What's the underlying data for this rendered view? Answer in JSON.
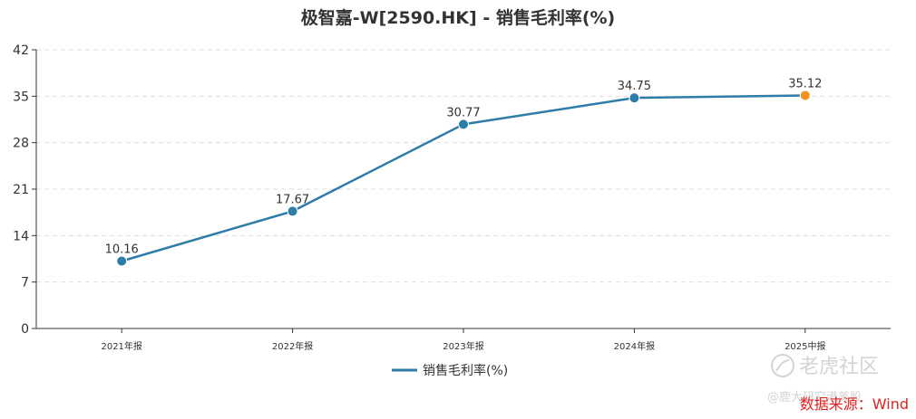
{
  "chart_data": {
    "type": "line",
    "title": "极智嘉-W[2590.HK] - 销售毛利率(%)",
    "categories": [
      "2021年报",
      "2022年报",
      "2023年报",
      "2024年报",
      "2025中报"
    ],
    "series": [
      {
        "name": "销售毛利率(%)",
        "values": [
          10.16,
          17.67,
          30.77,
          34.75,
          35.12
        ],
        "data_labels": [
          "10.16",
          "17.67",
          "30.77",
          "34.75",
          "35.12"
        ],
        "color": "#2e7ca8",
        "highlight_last_color": "#f0931e"
      }
    ],
    "yticks": [
      "0",
      "7",
      "14",
      "21",
      "28",
      "35",
      "42"
    ],
    "ylim": [
      0,
      42
    ],
    "grid": true,
    "legend_position": "bottom-center"
  },
  "source_label": "数据来源：Wind",
  "watermark": {
    "brand": "老虎社区",
    "handle": "@鹿大研究港美股"
  }
}
